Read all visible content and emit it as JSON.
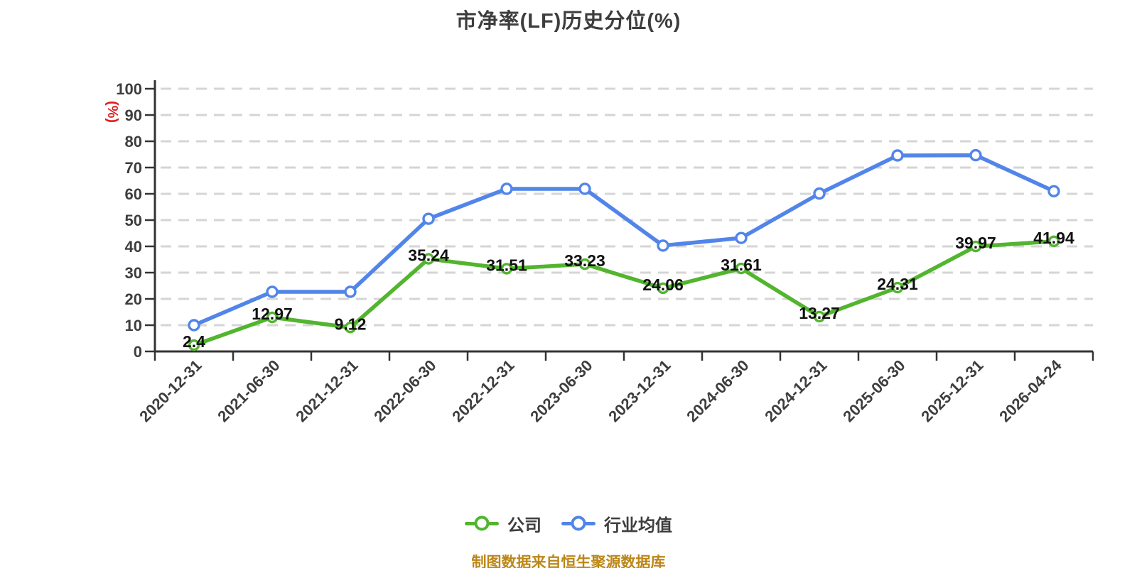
{
  "chart_data": {
    "type": "line",
    "title": "市净率(LF)历史分位(%)",
    "ylabel": "(%)",
    "ylabel_color": "#e01f1f",
    "xlabel": "",
    "ylim": [
      0,
      100
    ],
    "yticks": [
      0,
      10,
      20,
      30,
      40,
      50,
      60,
      70,
      80,
      90,
      100
    ],
    "grid": "horizontal-dashed",
    "legend_position": "bottom",
    "categories": [
      "2020-12-31",
      "2021-06-30",
      "2021-12-31",
      "2022-06-30",
      "2022-12-31",
      "2023-06-30",
      "2023-12-31",
      "2024-06-30",
      "2024-12-31",
      "2025-06-30",
      "2025-12-31",
      "2026-04-24"
    ],
    "series": [
      {
        "name": "公司",
        "color": "#52b52e",
        "values": [
          2.4,
          12.97,
          9.12,
          35.24,
          31.51,
          33.23,
          24.06,
          31.61,
          13.27,
          24.31,
          39.97,
          41.94
        ],
        "point_labels": true
      },
      {
        "name": "行业均值",
        "color": "#5285e9",
        "values": [
          10,
          22.7,
          22.7,
          50.5,
          61.9,
          61.9,
          40.3,
          43.2,
          60.1,
          74.6,
          74.7,
          61
        ],
        "point_labels": false
      }
    ]
  },
  "footer": {
    "text": "制图数据来自恒生聚源数据库",
    "color": "#bc8717"
  }
}
